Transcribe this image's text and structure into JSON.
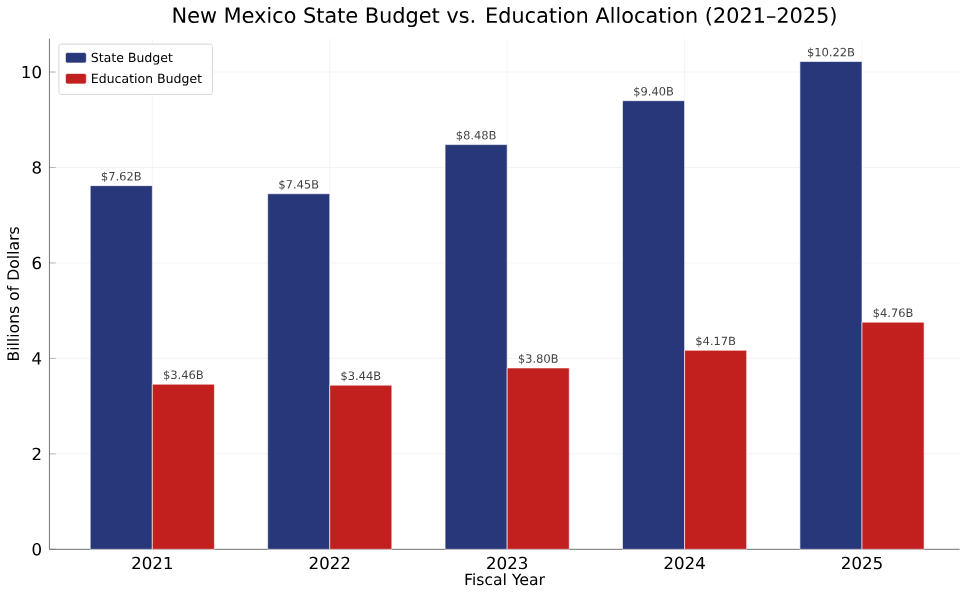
{
  "chart_data": {
    "type": "bar",
    "title": "New Mexico State Budget vs. Education Allocation (2021–2025)",
    "xlabel": "Fiscal Year",
    "ylabel": "Billions of Dollars",
    "categories": [
      "2021",
      "2022",
      "2023",
      "2024",
      "2025"
    ],
    "series": [
      {
        "name": "State Budget",
        "color": "#283779",
        "values": [
          7.62,
          7.45,
          8.48,
          9.4,
          10.22
        ],
        "value_labels": [
          "$7.62B",
          "$7.45B",
          "$8.48B",
          "$9.40B",
          "$10.22B"
        ]
      },
      {
        "name": "Education Budget",
        "color": "#c21f1f",
        "values": [
          3.46,
          3.44,
          3.8,
          4.17,
          4.76
        ],
        "value_labels": [
          "$3.46B",
          "$3.44B",
          "$3.80B",
          "$4.17B",
          "$4.76B"
        ]
      }
    ],
    "ylim": [
      0,
      10.7
    ],
    "yticks": [
      0,
      2,
      4,
      6,
      8,
      10
    ],
    "grid": true,
    "legend": "top left"
  }
}
